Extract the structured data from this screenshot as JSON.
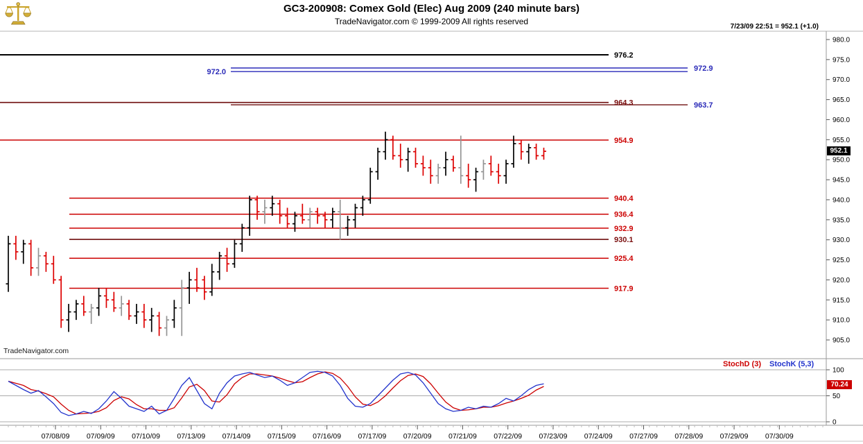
{
  "header": {
    "title": "GC3-200908:  Comex Gold (Elec) Aug 2009  (240 minute bars)",
    "subtitle": "TradeNavigator.com © 1999-2009 All rights reserved",
    "quote_line": "7/23/09 22:51 = 952.1 (+1.0)"
  },
  "watermark": "TradeNavigator.com",
  "price_badge": "952.1",
  "stoch_panel": {
    "label_d": "StochD (3)",
    "label_k": "StochK (5,3)",
    "badge": "70.24"
  },
  "colors": {
    "up_bar": "#000000",
    "down_bar": "#dd0000",
    "neutral_bar": "#949494",
    "stoch_d": "#cc0000",
    "stoch_k": "#2233cc",
    "level_red": "#cc0000",
    "level_maroon": "#6e0d0d",
    "level_blue": "#2a2ab8"
  },
  "chart_data": {
    "type": "ohlc-bar",
    "title": "GC3-200908: Comex Gold (Elec) Aug 2009 (240 minute bars)",
    "ylabel": "Price",
    "ylim": [
      905,
      980
    ],
    "y_axis": {
      "ticks": [
        "980.0",
        "975.0",
        "970.0",
        "965.0",
        "960.0",
        "955.0",
        "950.0",
        "945.0",
        "940.0",
        "935.0",
        "930.0",
        "925.0",
        "920.0",
        "915.0",
        "910.0",
        "905.0"
      ]
    },
    "x_axis": {
      "dates": [
        "07/08/09",
        "07/09/09",
        "07/10/09",
        "07/13/09",
        "07/14/09",
        "07/15/09",
        "07/16/09",
        "07/17/09",
        "07/20/09",
        "07/21/09",
        "07/22/09",
        "07/23/09",
        "07/24/09",
        "07/27/09",
        "07/28/09",
        "07/29/09",
        "07/30/09"
      ]
    },
    "last_price": 952.1,
    "last_change": 1.0,
    "bars": [
      [
        919,
        931,
        917,
        929,
        "k"
      ],
      [
        929,
        931,
        925,
        927,
        "r"
      ],
      [
        927,
        930,
        924,
        929,
        "k"
      ],
      [
        929,
        930,
        921,
        923,
        "r"
      ],
      [
        923,
        928,
        921,
        926,
        "g"
      ],
      [
        926,
        927,
        922,
        924,
        "r"
      ],
      [
        924,
        926,
        919,
        920,
        "r"
      ],
      [
        920,
        921,
        908,
        910,
        "r"
      ],
      [
        910,
        914,
        907,
        912,
        "k"
      ],
      [
        912,
        915,
        910,
        914,
        "k"
      ],
      [
        914,
        916,
        911,
        912,
        "r"
      ],
      [
        912,
        914,
        909,
        913,
        "g"
      ],
      [
        913,
        918,
        911,
        916,
        "k"
      ],
      [
        916,
        918,
        913,
        915,
        "r"
      ],
      [
        915,
        917,
        912,
        913,
        "r"
      ],
      [
        913,
        916,
        911,
        914,
        "g"
      ],
      [
        914,
        915,
        910,
        911,
        "r"
      ],
      [
        911,
        914,
        909,
        912,
        "k"
      ],
      [
        912,
        914,
        908,
        910,
        "r"
      ],
      [
        910,
        913,
        907,
        911,
        "k"
      ],
      [
        911,
        912,
        906,
        908,
        "r"
      ],
      [
        908,
        911,
        906,
        910,
        "g"
      ],
      [
        910,
        915,
        908,
        913,
        "k"
      ],
      [
        913,
        920,
        906,
        918,
        "g"
      ],
      [
        918,
        922,
        914,
        920,
        "k"
      ],
      [
        920,
        923,
        917,
        918,
        "r"
      ],
      [
        920,
        921,
        915,
        917,
        "r"
      ],
      [
        917,
        924,
        916,
        922,
        "k"
      ],
      [
        922,
        927,
        920,
        926,
        "k"
      ],
      [
        926,
        928,
        922,
        924,
        "r"
      ],
      [
        924,
        930,
        923,
        929,
        "k"
      ],
      [
        929,
        934,
        927,
        933,
        "k"
      ],
      [
        933,
        941,
        931,
        940,
        "k"
      ],
      [
        940,
        941,
        935,
        937,
        "r"
      ],
      [
        937,
        940,
        934,
        938,
        "g"
      ],
      [
        938,
        941,
        936,
        939,
        "k"
      ],
      [
        939,
        940,
        934,
        936,
        "r"
      ],
      [
        936,
        938,
        933,
        934,
        "r"
      ],
      [
        934,
        937,
        932,
        936,
        "k"
      ],
      [
        936,
        939,
        934,
        935,
        "r"
      ],
      [
        935,
        938,
        933,
        937,
        "g"
      ],
      [
        937,
        938,
        934,
        936,
        "r"
      ],
      [
        936,
        937,
        933,
        935,
        "r"
      ],
      [
        935,
        938,
        933,
        937,
        "k"
      ],
      [
        937,
        940,
        930,
        933,
        "g"
      ],
      [
        933,
        936,
        931,
        935,
        "k"
      ],
      [
        935,
        939,
        933,
        938,
        "k"
      ],
      [
        938,
        941,
        936,
        940,
        "k"
      ],
      [
        940,
        948,
        939,
        947,
        "k"
      ],
      [
        947,
        953,
        945,
        952,
        "k"
      ],
      [
        952,
        957,
        950,
        955,
        "k"
      ],
      [
        955,
        956,
        950,
        951,
        "r"
      ],
      [
        951,
        954,
        948,
        950,
        "r"
      ],
      [
        950,
        953,
        947,
        952,
        "k"
      ],
      [
        952,
        953,
        948,
        949,
        "r"
      ],
      [
        949,
        951,
        946,
        948,
        "r"
      ],
      [
        948,
        950,
        944,
        946,
        "r"
      ],
      [
        946,
        949,
        944,
        948,
        "g"
      ],
      [
        948,
        952,
        946,
        950,
        "k"
      ],
      [
        950,
        951,
        947,
        948,
        "r"
      ],
      [
        948,
        956,
        944,
        946,
        "g"
      ],
      [
        946,
        949,
        943,
        945,
        "r"
      ],
      [
        945,
        948,
        942,
        947,
        "k"
      ],
      [
        947,
        950,
        945,
        949,
        "g"
      ],
      [
        949,
        951,
        946,
        947,
        "r"
      ],
      [
        947,
        949,
        944,
        946,
        "r"
      ],
      [
        946,
        950,
        944,
        949,
        "k"
      ],
      [
        949,
        956,
        948,
        954,
        "k"
      ],
      [
        954,
        955,
        950,
        952,
        "r"
      ],
      [
        952,
        954,
        949,
        953,
        "k"
      ],
      [
        953,
        954,
        950,
        951,
        "r"
      ],
      [
        951,
        953,
        950,
        952.1,
        "r"
      ]
    ],
    "levels": [
      {
        "price": 976.2,
        "x1": 0,
        "x2": 878,
        "color": "#000000",
        "w": 2,
        "label": "976.2",
        "label_color": "#000000",
        "label_x": 886,
        "anchor": "start"
      },
      {
        "price": 972.9,
        "x1": 333,
        "x2": 992,
        "color": "#2a2ab8",
        "w": 1.4,
        "label": "972.9",
        "label_color": "#2a2ab8",
        "label_x": 1001,
        "anchor": "start"
      },
      {
        "price": 972.0,
        "x1": 333,
        "x2": 992,
        "color": "#2a2ab8",
        "w": 1.4,
        "label": "972.0",
        "label_color": "#2a2ab8",
        "label_x": 326,
        "anchor": "end"
      },
      {
        "price": 964.3,
        "x1": 0,
        "x2": 878,
        "color": "#6e0d0d",
        "w": 1.6,
        "label": "964.3",
        "label_color": "#7a0e0e",
        "label_x": 886,
        "anchor": "start"
      },
      {
        "price": 963.7,
        "x1": 333,
        "x2": 992,
        "color": "#6e0d0d",
        "w": 1.4,
        "label": "963.7",
        "label_color": "#2a2ab8",
        "label_x": 1001,
        "anchor": "start"
      },
      {
        "price": 954.9,
        "x1": 0,
        "x2": 878,
        "color": "#cc0000",
        "w": 1.5,
        "label": "954.9",
        "label_color": "#cc0000",
        "label_x": 886,
        "anchor": "start"
      },
      {
        "price": 940.4,
        "x1": 100,
        "x2": 878,
        "color": "#cc0000",
        "w": 1.5,
        "label": "940.4",
        "label_color": "#cc0000",
        "label_x": 886,
        "anchor": "start"
      },
      {
        "price": 936.4,
        "x1": 100,
        "x2": 878,
        "color": "#cc0000",
        "w": 1.5,
        "label": "936.4",
        "label_color": "#cc0000",
        "label_x": 886,
        "anchor": "start"
      },
      {
        "price": 932.9,
        "x1": 100,
        "x2": 878,
        "color": "#cc0000",
        "w": 1.5,
        "label": "932.9",
        "label_color": "#cc0000",
        "label_x": 886,
        "anchor": "start"
      },
      {
        "price": 930.1,
        "x1": 100,
        "x2": 878,
        "color": "#6e0d0d",
        "w": 1.6,
        "label": "930.1",
        "label_color": "#7a0e0e",
        "label_x": 886,
        "anchor": "start"
      },
      {
        "price": 925.4,
        "x1": 100,
        "x2": 878,
        "color": "#cc0000",
        "w": 1.5,
        "label": "925.4",
        "label_color": "#cc0000",
        "label_x": 886,
        "anchor": "start"
      },
      {
        "price": 917.9,
        "x1": 100,
        "x2": 878,
        "color": "#cc0000",
        "w": 1.5,
        "label": "917.9",
        "label_color": "#cc0000",
        "label_x": 886,
        "anchor": "start"
      }
    ],
    "stochastic": {
      "name_d": "StochD (3)",
      "name_k": "StochK (5,3)",
      "range": [
        0,
        100
      ],
      "gridlines": [
        100,
        50,
        0
      ],
      "last_value": 70.24,
      "k": [
        78,
        70,
        62,
        55,
        60,
        48,
        35,
        18,
        12,
        15,
        20,
        16,
        25,
        40,
        58,
        45,
        30,
        25,
        20,
        30,
        15,
        22,
        45,
        70,
        85,
        60,
        35,
        25,
        55,
        75,
        88,
        92,
        95,
        90,
        85,
        88,
        80,
        70,
        75,
        85,
        95,
        97,
        95,
        88,
        70,
        45,
        30,
        28,
        35,
        50,
        65,
        80,
        92,
        95,
        90,
        75,
        55,
        35,
        25,
        20,
        22,
        28,
        25,
        30,
        28,
        35,
        45,
        40,
        50,
        62,
        70,
        73
      ],
      "d": [
        78,
        74,
        70,
        62,
        59,
        54,
        48,
        34,
        22,
        15,
        16,
        17,
        20,
        27,
        41,
        48,
        44,
        33,
        25,
        25,
        22,
        22,
        27,
        46,
        67,
        72,
        60,
        40,
        38,
        52,
        73,
        85,
        92,
        92,
        90,
        88,
        84,
        79,
        75,
        77,
        85,
        92,
        96,
        93,
        84,
        68,
        48,
        34,
        31,
        38,
        50,
        65,
        79,
        89,
        92,
        87,
        73,
        55,
        38,
        27,
        22,
        23,
        25,
        28,
        28,
        31,
        36,
        40,
        45,
        51,
        61,
        68
      ]
    }
  }
}
